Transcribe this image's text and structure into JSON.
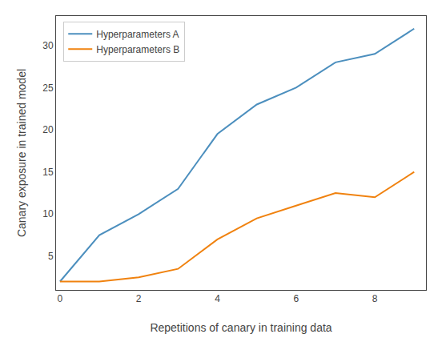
{
  "chart_data": {
    "type": "line",
    "x": [
      0,
      1,
      2,
      3,
      4,
      5,
      6,
      7,
      8,
      9
    ],
    "series": [
      {
        "name": "Hyperparameters A",
        "color": "#4c8fbe",
        "values": [
          2.0,
          7.5,
          10.0,
          13.0,
          19.5,
          23.0,
          25.0,
          28.0,
          29.0,
          32.0
        ]
      },
      {
        "name": "Hyperparameters B",
        "color": "#f0820f",
        "values": [
          2.0,
          2.0,
          2.5,
          3.5,
          7.0,
          9.5,
          11.0,
          12.5,
          12.0,
          15.0
        ]
      }
    ],
    "xlabel": "Repetitions of canary in training data",
    "ylabel": "Canary exposure in trained model",
    "xlim": [
      -0.1,
      9.3
    ],
    "ylim": [
      1.0,
      33.5
    ],
    "xticks": [
      0,
      2,
      4,
      6,
      8
    ],
    "yticks": [
      5,
      10,
      15,
      20,
      25,
      30
    ],
    "legend": "upper left",
    "grid": false
  }
}
